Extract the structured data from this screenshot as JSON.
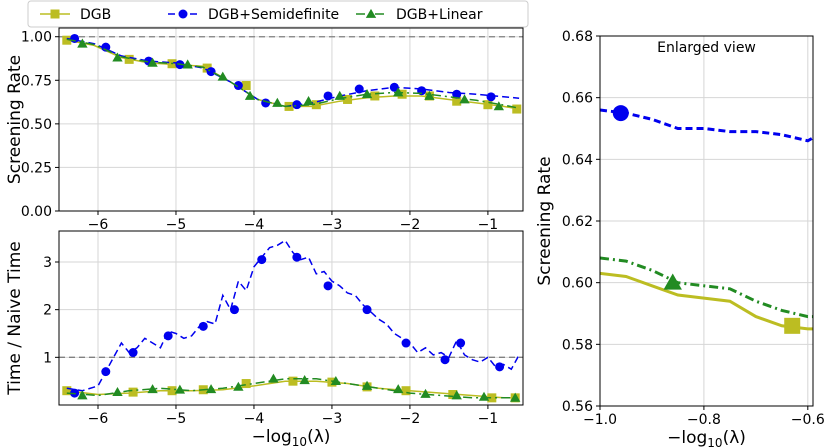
{
  "chart_data": [
    {
      "type": "line",
      "panel": "screening-rate",
      "title": "",
      "xlabel": "",
      "ylabel": "Screening Rate",
      "xlim": [
        -6.5,
        -0.55
      ],
      "ylim": [
        0.0,
        1.05
      ],
      "xticks": [
        -6,
        -5,
        -4,
        -3,
        -2,
        -1
      ],
      "xtick_labels": [
        "−6",
        "−5",
        "−4",
        "−3",
        "−2",
        "−1"
      ],
      "yticks": [
        0.0,
        0.25,
        0.5,
        0.75,
        1.0
      ],
      "ytick_labels": [
        "0.00",
        "0.25",
        "0.50",
        "0.75",
        "1.00"
      ],
      "reference_line": 1.0,
      "grid": true,
      "legend_position": "top",
      "series": [
        {
          "name": "DGB",
          "color": "#bcbd22",
          "marker": "square",
          "dash": "solid",
          "x": [
            -6.4,
            -6.05,
            -5.7,
            -5.35,
            -5.0,
            -4.65,
            -4.3,
            -3.95,
            -3.6,
            -3.25,
            -2.9,
            -2.55,
            -2.2,
            -1.85,
            -1.5,
            -1.15,
            -0.8,
            -0.6
          ],
          "y": [
            0.98,
            0.95,
            0.88,
            0.85,
            0.84,
            0.83,
            0.74,
            0.64,
            0.6,
            0.6,
            0.63,
            0.65,
            0.66,
            0.66,
            0.64,
            0.62,
            0.6,
            0.585
          ],
          "marker_x": [
            -6.4,
            -5.6,
            -5.05,
            -4.6,
            -4.1,
            -3.55,
            -3.2,
            -2.8,
            -2.45,
            -2.1,
            -1.75,
            -1.4,
            -1.0,
            -0.63
          ],
          "marker_y": [
            0.98,
            0.87,
            0.845,
            0.82,
            0.72,
            0.6,
            0.61,
            0.64,
            0.66,
            0.67,
            0.66,
            0.63,
            0.61,
            0.585
          ]
        },
        {
          "name": "DGB+Semidefinite",
          "color": "#0000ee",
          "marker": "circle",
          "dash": "dashed",
          "x": [
            -6.4,
            -6.05,
            -5.7,
            -5.35,
            -5.0,
            -4.65,
            -4.3,
            -3.95,
            -3.6,
            -3.25,
            -2.9,
            -2.55,
            -2.2,
            -1.85,
            -1.5,
            -1.15,
            -0.8,
            -0.6
          ],
          "y": [
            0.99,
            0.96,
            0.89,
            0.86,
            0.85,
            0.82,
            0.74,
            0.64,
            0.6,
            0.62,
            0.66,
            0.69,
            0.71,
            0.7,
            0.68,
            0.67,
            0.655,
            0.647
          ],
          "marker_x": [
            -6.3,
            -5.9,
            -5.35,
            -4.95,
            -4.55,
            -4.2,
            -3.85,
            -3.45,
            -3.05,
            -2.65,
            -2.2,
            -1.85,
            -1.4,
            -0.96
          ],
          "marker_y": [
            0.99,
            0.94,
            0.86,
            0.84,
            0.8,
            0.72,
            0.62,
            0.61,
            0.66,
            0.7,
            0.71,
            0.69,
            0.67,
            0.655
          ]
        },
        {
          "name": "DGB+Linear",
          "color": "#228b22",
          "marker": "triangle",
          "dash": "dashdot",
          "x": [
            -6.4,
            -6.05,
            -5.7,
            -5.35,
            -5.0,
            -4.65,
            -4.3,
            -3.95,
            -3.6,
            -3.25,
            -2.9,
            -2.55,
            -2.2,
            -1.85,
            -1.5,
            -1.15,
            -0.8,
            -0.6
          ],
          "y": [
            0.985,
            0.955,
            0.885,
            0.855,
            0.845,
            0.825,
            0.74,
            0.64,
            0.6,
            0.61,
            0.645,
            0.67,
            0.68,
            0.675,
            0.655,
            0.635,
            0.608,
            0.59
          ],
          "marker_x": [
            -6.2,
            -5.75,
            -5.3,
            -4.85,
            -4.4,
            -4.05,
            -3.7,
            -3.3,
            -2.9,
            -2.55,
            -2.15,
            -1.75,
            -1.3,
            -0.86
          ],
          "marker_y": [
            0.96,
            0.88,
            0.85,
            0.84,
            0.77,
            0.66,
            0.62,
            0.63,
            0.66,
            0.67,
            0.68,
            0.66,
            0.64,
            0.6
          ]
        }
      ]
    },
    {
      "type": "line",
      "panel": "time-ratio",
      "title": "",
      "xlabel": "−log10(λ)",
      "ylabel": "Time / Naive Time",
      "xlim": [
        -6.5,
        -0.55
      ],
      "ylim": [
        0.0,
        3.65
      ],
      "xticks": [
        -6,
        -5,
        -4,
        -3,
        -2,
        -1
      ],
      "xtick_labels": [
        "−6",
        "−5",
        "−4",
        "−3",
        "−2",
        "−1"
      ],
      "yticks": [
        1,
        2,
        3
      ],
      "ytick_labels": [
        "1",
        "2",
        "3"
      ],
      "reference_line": 1.0,
      "grid": true,
      "series": [
        {
          "name": "DGB",
          "color": "#bcbd22",
          "marker": "square",
          "dash": "solid",
          "x": [
            -6.4,
            -6.0,
            -5.6,
            -5.2,
            -4.8,
            -4.4,
            -4.0,
            -3.6,
            -3.2,
            -2.8,
            -2.4,
            -2.0,
            -1.6,
            -1.2,
            -0.8,
            -0.6
          ],
          "y": [
            0.3,
            0.22,
            0.25,
            0.3,
            0.3,
            0.32,
            0.4,
            0.5,
            0.5,
            0.45,
            0.35,
            0.3,
            0.25,
            0.2,
            0.15,
            0.15
          ],
          "marker_x": [
            -6.4,
            -5.55,
            -5.05,
            -4.65,
            -4.1,
            -3.5,
            -3.0,
            -2.55,
            -2.05,
            -1.45,
            -0.95,
            -0.65
          ],
          "marker_y": [
            0.3,
            0.27,
            0.3,
            0.32,
            0.45,
            0.5,
            0.48,
            0.38,
            0.3,
            0.22,
            0.15,
            0.15
          ]
        },
        {
          "name": "DGB+Semidefinite",
          "color": "#0000ee",
          "marker": "circle",
          "dash": "dashed",
          "x": [
            -6.4,
            -6.2,
            -6.0,
            -5.9,
            -5.8,
            -5.7,
            -5.6,
            -5.5,
            -5.4,
            -5.3,
            -5.2,
            -5.1,
            -5.0,
            -4.9,
            -4.8,
            -4.7,
            -4.6,
            -4.5,
            -4.4,
            -4.3,
            -4.2,
            -4.1,
            -4.0,
            -3.9,
            -3.8,
            -3.7,
            -3.6,
            -3.5,
            -3.4,
            -3.3,
            -3.2,
            -3.1,
            -3.0,
            -2.9,
            -2.8,
            -2.7,
            -2.6,
            -2.5,
            -2.4,
            -2.3,
            -2.2,
            -2.1,
            -2.0,
            -1.9,
            -1.8,
            -1.7,
            -1.6,
            -1.5,
            -1.4,
            -1.3,
            -1.2,
            -1.1,
            -1.0,
            -0.9,
            -0.8,
            -0.7,
            -0.6
          ],
          "y": [
            0.35,
            0.3,
            0.4,
            0.7,
            1.0,
            1.3,
            1.1,
            1.2,
            1.4,
            1.3,
            1.2,
            1.55,
            1.5,
            1.4,
            1.45,
            1.65,
            1.75,
            1.7,
            2.3,
            2.0,
            2.6,
            2.4,
            2.9,
            3.1,
            3.3,
            3.35,
            3.45,
            3.2,
            3.05,
            3.1,
            2.75,
            2.8,
            2.6,
            2.5,
            2.35,
            2.3,
            2.1,
            1.95,
            1.8,
            1.7,
            1.5,
            1.4,
            1.3,
            1.1,
            1.2,
            1.05,
            1.1,
            1.0,
            1.35,
            1.05,
            0.95,
            0.9,
            1.0,
            0.8,
            0.85,
            0.75,
            1.05
          ],
          "marker_x": [
            -6.3,
            -5.9,
            -5.55,
            -5.1,
            -4.65,
            -4.25,
            -3.9,
            -3.45,
            -3.05,
            -2.55,
            -2.05,
            -1.55,
            -1.35,
            -0.85
          ],
          "marker_y": [
            0.25,
            0.7,
            1.1,
            1.45,
            1.65,
            2.0,
            3.05,
            3.1,
            2.5,
            2.0,
            1.3,
            0.95,
            1.3,
            0.8
          ]
        },
        {
          "name": "DGB+Linear",
          "color": "#228b22",
          "marker": "triangle",
          "dash": "dashdot",
          "x": [
            -6.4,
            -6.0,
            -5.6,
            -5.2,
            -4.8,
            -4.4,
            -4.0,
            -3.6,
            -3.2,
            -2.8,
            -2.4,
            -2.0,
            -1.6,
            -1.2,
            -0.8,
            -0.6
          ],
          "y": [
            0.25,
            0.2,
            0.3,
            0.35,
            0.3,
            0.35,
            0.45,
            0.55,
            0.55,
            0.45,
            0.35,
            0.25,
            0.2,
            0.15,
            0.15,
            0.15
          ],
          "marker_x": [
            -6.2,
            -5.75,
            -5.3,
            -4.95,
            -4.55,
            -4.2,
            -3.75,
            -3.35,
            -2.95,
            -2.55,
            -2.15,
            -1.8,
            -1.4,
            -1.05,
            -0.65
          ],
          "marker_y": [
            0.2,
            0.27,
            0.33,
            0.32,
            0.33,
            0.38,
            0.55,
            0.52,
            0.5,
            0.4,
            0.33,
            0.23,
            0.2,
            0.17,
            0.15
          ]
        }
      ]
    },
    {
      "type": "line",
      "panel": "enlarged-view",
      "title": "Enlarged view",
      "xlabel": "−log10(λ)",
      "ylabel": "Screening Rate",
      "xlim": [
        -1.0,
        -0.59
      ],
      "ylim": [
        0.56,
        0.68
      ],
      "xticks": [
        -1.0,
        -0.8,
        -0.6
      ],
      "xtick_labels": [
        "−1.0",
        "−0.8",
        "−0.6"
      ],
      "yticks": [
        0.56,
        0.58,
        0.6,
        0.62,
        0.64,
        0.66,
        0.68
      ],
      "ytick_labels": [
        "0.56",
        "0.58",
        "0.60",
        "0.62",
        "0.64",
        "0.66",
        "0.68"
      ],
      "grid": true,
      "series": [
        {
          "name": "DGB",
          "color": "#bcbd22",
          "marker": "square",
          "dash": "solid",
          "x": [
            -1.0,
            -0.95,
            -0.9,
            -0.85,
            -0.8,
            -0.75,
            -0.7,
            -0.65,
            -0.6,
            -0.59
          ],
          "y": [
            0.603,
            0.602,
            0.599,
            0.596,
            0.595,
            0.594,
            0.589,
            0.586,
            0.585,
            0.585
          ],
          "marker_x": [
            -0.63
          ],
          "marker_y": [
            0.586
          ]
        },
        {
          "name": "DGB+Semidefinite",
          "color": "#0000ee",
          "marker": "circle",
          "dash": "dashed",
          "x": [
            -1.0,
            -0.95,
            -0.9,
            -0.85,
            -0.8,
            -0.75,
            -0.7,
            -0.65,
            -0.6,
            -0.59
          ],
          "y": [
            0.656,
            0.655,
            0.653,
            0.65,
            0.65,
            0.649,
            0.649,
            0.648,
            0.646,
            0.647
          ],
          "marker_x": [
            -0.96
          ],
          "marker_y": [
            0.655
          ]
        },
        {
          "name": "DGB+Linear",
          "color": "#228b22",
          "marker": "triangle",
          "dash": "dashdot",
          "x": [
            -1.0,
            -0.95,
            -0.9,
            -0.85,
            -0.8,
            -0.75,
            -0.7,
            -0.65,
            -0.6,
            -0.59
          ],
          "y": [
            0.608,
            0.607,
            0.604,
            0.6,
            0.599,
            0.598,
            0.594,
            0.591,
            0.589,
            0.589
          ],
          "marker_x": [
            -0.86
          ],
          "marker_y": [
            0.6
          ]
        }
      ]
    }
  ],
  "legend": {
    "entries": [
      "DGB",
      "DGB+Semidefinite",
      "DGB+Linear"
    ]
  }
}
